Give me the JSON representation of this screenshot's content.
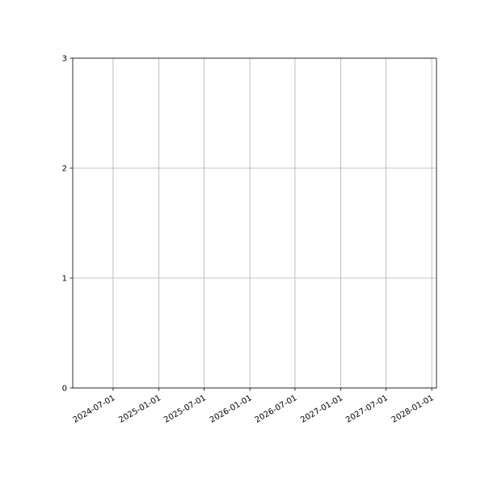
{
  "chart_data": {
    "type": "line",
    "title": "",
    "xlabel": "",
    "ylabel": "",
    "x_scale": "date",
    "xlim": [
      "2024-01-21",
      "2028-01-20"
    ],
    "ylim": [
      0,
      3
    ],
    "grid": true,
    "x_ticks": [
      "2024-07-01",
      "2025-01-01",
      "2025-07-01",
      "2026-01-01",
      "2026-07-01",
      "2027-01-01",
      "2027-07-01",
      "2028-01-01"
    ],
    "y_ticks": [
      "0",
      "1",
      "2",
      "3"
    ],
    "series": [],
    "colors": {
      "grid": "#b0b0b0",
      "axes": "#000000"
    }
  }
}
